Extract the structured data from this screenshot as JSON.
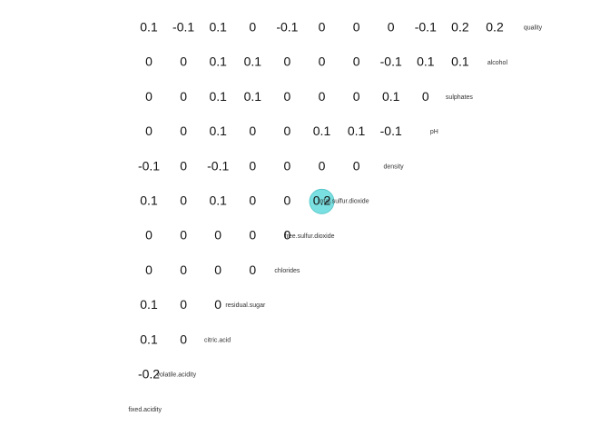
{
  "chart_data": {
    "type": "heatmap",
    "variables": [
      "fixed.acidity",
      "volatile.acidity",
      "citric.acid",
      "residual.sugar",
      "chlorides",
      "free.sulfur.dioxide",
      "total.sulfur.dioxide",
      "density",
      "pH",
      "sulphates",
      "alcohol",
      "quality"
    ],
    "cells": [
      {
        "row": "volatile.acidity",
        "col": "fixed.acidity",
        "value": -0.2
      },
      {
        "row": "citric.acid",
        "col": "fixed.acidity",
        "value": 0.1
      },
      {
        "row": "citric.acid",
        "col": "volatile.acidity",
        "value": 0
      },
      {
        "row": "residual.sugar",
        "col": "fixed.acidity",
        "value": 0.1
      },
      {
        "row": "residual.sugar",
        "col": "volatile.acidity",
        "value": 0
      },
      {
        "row": "residual.sugar",
        "col": "citric.acid",
        "value": 0
      },
      {
        "row": "chlorides",
        "col": "fixed.acidity",
        "value": 0
      },
      {
        "row": "chlorides",
        "col": "volatile.acidity",
        "value": 0
      },
      {
        "row": "chlorides",
        "col": "citric.acid",
        "value": 0
      },
      {
        "row": "chlorides",
        "col": "residual.sugar",
        "value": 0
      },
      {
        "row": "free.sulfur.dioxide",
        "col": "fixed.acidity",
        "value": 0
      },
      {
        "row": "free.sulfur.dioxide",
        "col": "volatile.acidity",
        "value": 0
      },
      {
        "row": "free.sulfur.dioxide",
        "col": "citric.acid",
        "value": 0
      },
      {
        "row": "free.sulfur.dioxide",
        "col": "residual.sugar",
        "value": 0
      },
      {
        "row": "free.sulfur.dioxide",
        "col": "chlorides",
        "value": 0
      },
      {
        "row": "total.sulfur.dioxide",
        "col": "fixed.acidity",
        "value": 0.1
      },
      {
        "row": "total.sulfur.dioxide",
        "col": "volatile.acidity",
        "value": 0
      },
      {
        "row": "total.sulfur.dioxide",
        "col": "citric.acid",
        "value": 0.1
      },
      {
        "row": "total.sulfur.dioxide",
        "col": "residual.sugar",
        "value": 0
      },
      {
        "row": "total.sulfur.dioxide",
        "col": "chlorides",
        "value": 0
      },
      {
        "row": "total.sulfur.dioxide",
        "col": "free.sulfur.dioxide",
        "value": 0.2
      },
      {
        "row": "density",
        "col": "fixed.acidity",
        "value": -0.1
      },
      {
        "row": "density",
        "col": "volatile.acidity",
        "value": 0
      },
      {
        "row": "density",
        "col": "citric.acid",
        "value": -0.1
      },
      {
        "row": "density",
        "col": "residual.sugar",
        "value": 0
      },
      {
        "row": "density",
        "col": "chlorides",
        "value": 0
      },
      {
        "row": "density",
        "col": "free.sulfur.dioxide",
        "value": 0
      },
      {
        "row": "density",
        "col": "total.sulfur.dioxide",
        "value": 0
      },
      {
        "row": "pH",
        "col": "fixed.acidity",
        "value": 0
      },
      {
        "row": "pH",
        "col": "volatile.acidity",
        "value": 0
      },
      {
        "row": "pH",
        "col": "citric.acid",
        "value": 0.1
      },
      {
        "row": "pH",
        "col": "residual.sugar",
        "value": 0
      },
      {
        "row": "pH",
        "col": "chlorides",
        "value": 0
      },
      {
        "row": "pH",
        "col": "free.sulfur.dioxide",
        "value": 0.1
      },
      {
        "row": "pH",
        "col": "total.sulfur.dioxide",
        "value": 0.1
      },
      {
        "row": "pH",
        "col": "density",
        "value": -0.1
      },
      {
        "row": "sulphates",
        "col": "fixed.acidity",
        "value": 0
      },
      {
        "row": "sulphates",
        "col": "volatile.acidity",
        "value": 0
      },
      {
        "row": "sulphates",
        "col": "citric.acid",
        "value": 0.1
      },
      {
        "row": "sulphates",
        "col": "residual.sugar",
        "value": 0.1
      },
      {
        "row": "sulphates",
        "col": "chlorides",
        "value": 0
      },
      {
        "row": "sulphates",
        "col": "free.sulfur.dioxide",
        "value": 0
      },
      {
        "row": "sulphates",
        "col": "total.sulfur.dioxide",
        "value": 0
      },
      {
        "row": "sulphates",
        "col": "density",
        "value": 0.1
      },
      {
        "row": "sulphates",
        "col": "pH",
        "value": 0
      },
      {
        "row": "alcohol",
        "col": "fixed.acidity",
        "value": 0
      },
      {
        "row": "alcohol",
        "col": "volatile.acidity",
        "value": 0
      },
      {
        "row": "alcohol",
        "col": "citric.acid",
        "value": 0.1
      },
      {
        "row": "alcohol",
        "col": "residual.sugar",
        "value": 0.1
      },
      {
        "row": "alcohol",
        "col": "chlorides",
        "value": 0
      },
      {
        "row": "alcohol",
        "col": "free.sulfur.dioxide",
        "value": 0
      },
      {
        "row": "alcohol",
        "col": "total.sulfur.dioxide",
        "value": 0
      },
      {
        "row": "alcohol",
        "col": "density",
        "value": -0.1
      },
      {
        "row": "alcohol",
        "col": "pH",
        "value": 0.1
      },
      {
        "row": "alcohol",
        "col": "sulphates",
        "value": 0.1
      },
      {
        "row": "quality",
        "col": "fixed.acidity",
        "value": 0.1
      },
      {
        "row": "quality",
        "col": "volatile.acidity",
        "value": -0.1
      },
      {
        "row": "quality",
        "col": "citric.acid",
        "value": 0.1
      },
      {
        "row": "quality",
        "col": "residual.sugar",
        "value": 0
      },
      {
        "row": "quality",
        "col": "chlorides",
        "value": -0.1
      },
      {
        "row": "quality",
        "col": "free.sulfur.dioxide",
        "value": 0
      },
      {
        "row": "quality",
        "col": "total.sulfur.dioxide",
        "value": 0
      },
      {
        "row": "quality",
        "col": "density",
        "value": 0
      },
      {
        "row": "quality",
        "col": "pH",
        "value": -0.1
      },
      {
        "row": "quality",
        "col": "sulphates",
        "value": 0.2
      },
      {
        "row": "quality",
        "col": "alcohol",
        "value": 0.2
      }
    ],
    "highlighted": [
      {
        "row": "total.sulfur.dioxide",
        "col": "free.sulfur.dioxide",
        "value": 0.2,
        "color": "#7adfe0",
        "stroke": "#4fc3c6"
      }
    ],
    "title": "",
    "grid": false,
    "legend": "none"
  }
}
